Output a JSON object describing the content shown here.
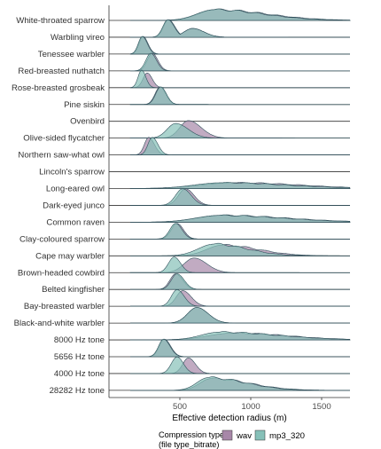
{
  "chart_data": {
    "type": "ridgeline",
    "xlabel": "Effective detection radius (m)",
    "xlim": [
      0,
      1700
    ],
    "x_ticks": [
      500,
      1000,
      1500
    ],
    "categories": [
      "White-throated sparrow",
      "Warbling vireo",
      "Tenessee warbler",
      "Red-breasted nuthatch",
      "Rose-breasted grosbeak",
      "Pine siskin",
      "Ovenbird",
      "Olive-sided flycatcher",
      "Northern saw-what owl",
      "Lincoln's sparrow",
      "Long-eared owl",
      "Dark-eyed junco",
      "Common raven",
      "Clay-coloured sparrow",
      "Cape may warbler",
      "Brown-headed cowbird",
      "Belted kingfisher",
      "Bay-breasted warbler",
      "Black-and-white warbler",
      "8000 Hz tone",
      "5656 Hz tone",
      "4000 Hz tone",
      "28282 Hz tone"
    ],
    "legend": {
      "title_line1": "Compression type",
      "title_line2": "(file type_bitrate)",
      "entries": [
        {
          "name": "wav",
          "color": "#a787a8"
        },
        {
          "name": "mp3_320",
          "color": "#86c0b8"
        }
      ],
      "overlap_color": "#5b8a99"
    },
    "series": [
      {
        "name": "wav",
        "distributions": [
          {
            "category": "White-throated sparrow",
            "peak": 750,
            "left_spread": 120,
            "right_spread": 360,
            "height": 0.55
          },
          {
            "category": "Warbling vireo",
            "peak": 420,
            "left_spread": 35,
            "right_spread": 45,
            "height": 0.9
          },
          {
            "category": "Warbling vireo",
            "peak": 590,
            "left_spread": 60,
            "right_spread": 80,
            "height": 0.45
          },
          {
            "category": "Tenessee warbler",
            "peak": 240,
            "left_spread": 28,
            "right_spread": 35,
            "height": 0.9
          },
          {
            "category": "Red-breasted nuthatch",
            "peak": 305,
            "left_spread": 35,
            "right_spread": 40,
            "height": 0.9
          },
          {
            "category": "Rose-breasted grosbeak",
            "peak": 270,
            "left_spread": 30,
            "right_spread": 35,
            "height": 0.75
          },
          {
            "category": "Pine siskin",
            "peak": 360,
            "left_spread": 35,
            "right_spread": 40,
            "height": 0.9
          },
          {
            "category": "Ovenbird",
            "peak": 300,
            "left_spread": 5,
            "right_spread": 5,
            "height": 0.0
          },
          {
            "category": "Olive-sided flycatcher",
            "peak": 560,
            "left_spread": 60,
            "right_spread": 90,
            "height": 0.9
          },
          {
            "category": "Northern saw-what owl",
            "peak": 280,
            "left_spread": 30,
            "right_spread": 40,
            "height": 0.9
          },
          {
            "category": "Lincoln's sparrow",
            "peak": 300,
            "left_spread": 5,
            "right_spread": 5,
            "height": 0.0
          },
          {
            "category": "Long-eared owl",
            "peak": 900,
            "left_spread": 250,
            "right_spread": 450,
            "height": 0.3
          },
          {
            "category": "Dark-eyed junco",
            "peak": 540,
            "left_spread": 50,
            "right_spread": 60,
            "height": 0.85
          },
          {
            "category": "Common raven",
            "peak": 800,
            "left_spread": 180,
            "right_spread": 450,
            "height": 0.35
          },
          {
            "category": "Clay-coloured sparrow",
            "peak": 480,
            "left_spread": 40,
            "right_spread": 45,
            "height": 0.8
          },
          {
            "category": "Cape may warbler",
            "peak": 800,
            "left_spread": 110,
            "right_spread": 250,
            "height": 0.55
          },
          {
            "category": "Brown-headed cowbird",
            "peak": 600,
            "left_spread": 70,
            "right_spread": 90,
            "height": 0.75
          },
          {
            "category": "Belted kingfisher",
            "peak": 470,
            "left_spread": 40,
            "right_spread": 50,
            "height": 0.8
          },
          {
            "category": "Bay-breasted warbler",
            "peak": 520,
            "left_spread": 45,
            "right_spread": 60,
            "height": 0.8
          },
          {
            "category": "Black-and-white warbler",
            "peak": 620,
            "left_spread": 65,
            "right_spread": 80,
            "height": 0.8
          },
          {
            "category": "8000 Hz tone",
            "peak": 880,
            "left_spread": 180,
            "right_spread": 380,
            "height": 0.35
          },
          {
            "category": "5656 Hz tone",
            "peak": 390,
            "left_spread": 35,
            "right_spread": 45,
            "height": 0.9
          },
          {
            "category": "4000 Hz tone",
            "peak": 560,
            "left_spread": 40,
            "right_spread": 50,
            "height": 0.8
          },
          {
            "category": "28282 Hz tone",
            "peak": 720,
            "left_spread": 80,
            "right_spread": 270,
            "height": 0.6
          }
        ]
      },
      {
        "name": "mp3_320",
        "distributions": [
          {
            "category": "White-throated sparrow",
            "peak": 740,
            "left_spread": 120,
            "right_spread": 340,
            "height": 0.55
          },
          {
            "category": "Warbling vireo",
            "peak": 415,
            "left_spread": 35,
            "right_spread": 45,
            "height": 0.9
          },
          {
            "category": "Warbling vireo",
            "peak": 590,
            "left_spread": 60,
            "right_spread": 80,
            "height": 0.45
          },
          {
            "category": "Tenessee warbler",
            "peak": 235,
            "left_spread": 28,
            "right_spread": 35,
            "height": 0.9
          },
          {
            "category": "Red-breasted nuthatch",
            "peak": 295,
            "left_spread": 35,
            "right_spread": 40,
            "height": 0.9
          },
          {
            "category": "Rose-breasted grosbeak",
            "peak": 230,
            "left_spread": 25,
            "right_spread": 30,
            "height": 0.9
          },
          {
            "category": "Pine siskin",
            "peak": 365,
            "left_spread": 35,
            "right_spread": 40,
            "height": 0.9
          },
          {
            "category": "Ovenbird",
            "peak": 300,
            "left_spread": 5,
            "right_spread": 5,
            "height": 0.0
          },
          {
            "category": "Olive-sided flycatcher",
            "peak": 470,
            "left_spread": 60,
            "right_spread": 90,
            "height": 0.75
          },
          {
            "category": "Northern saw-what owl",
            "peak": 305,
            "left_spread": 30,
            "right_spread": 40,
            "height": 0.9
          },
          {
            "category": "Lincoln's sparrow",
            "peak": 300,
            "left_spread": 5,
            "right_spread": 5,
            "height": 0.0
          },
          {
            "category": "Long-eared owl",
            "peak": 800,
            "left_spread": 200,
            "right_spread": 450,
            "height": 0.3
          },
          {
            "category": "Dark-eyed junco",
            "peak": 520,
            "left_spread": 50,
            "right_spread": 60,
            "height": 0.85
          },
          {
            "category": "Common raven",
            "peak": 780,
            "left_spread": 170,
            "right_spread": 440,
            "height": 0.35
          },
          {
            "category": "Clay-coloured sparrow",
            "peak": 470,
            "left_spread": 40,
            "right_spread": 45,
            "height": 0.8
          },
          {
            "category": "Cape may warbler",
            "peak": 740,
            "left_spread": 110,
            "right_spread": 230,
            "height": 0.6
          },
          {
            "category": "Brown-headed cowbird",
            "peak": 460,
            "left_spread": 40,
            "right_spread": 45,
            "height": 0.8
          },
          {
            "category": "Belted kingfisher",
            "peak": 480,
            "left_spread": 40,
            "right_spread": 50,
            "height": 0.8
          },
          {
            "category": "Bay-breasted warbler",
            "peak": 480,
            "left_spread": 40,
            "right_spread": 50,
            "height": 0.85
          },
          {
            "category": "Black-and-white warbler",
            "peak": 620,
            "left_spread": 65,
            "right_spread": 80,
            "height": 0.8
          },
          {
            "category": "8000 Hz tone",
            "peak": 780,
            "left_spread": 130,
            "right_spread": 400,
            "height": 0.4
          },
          {
            "category": "5656 Hz tone",
            "peak": 385,
            "left_spread": 35,
            "right_spread": 45,
            "height": 0.9
          },
          {
            "category": "4000 Hz tone",
            "peak": 480,
            "left_spread": 40,
            "right_spread": 45,
            "height": 0.85
          },
          {
            "category": "28282 Hz tone",
            "peak": 700,
            "left_spread": 80,
            "right_spread": 260,
            "height": 0.65
          }
        ]
      }
    ]
  }
}
